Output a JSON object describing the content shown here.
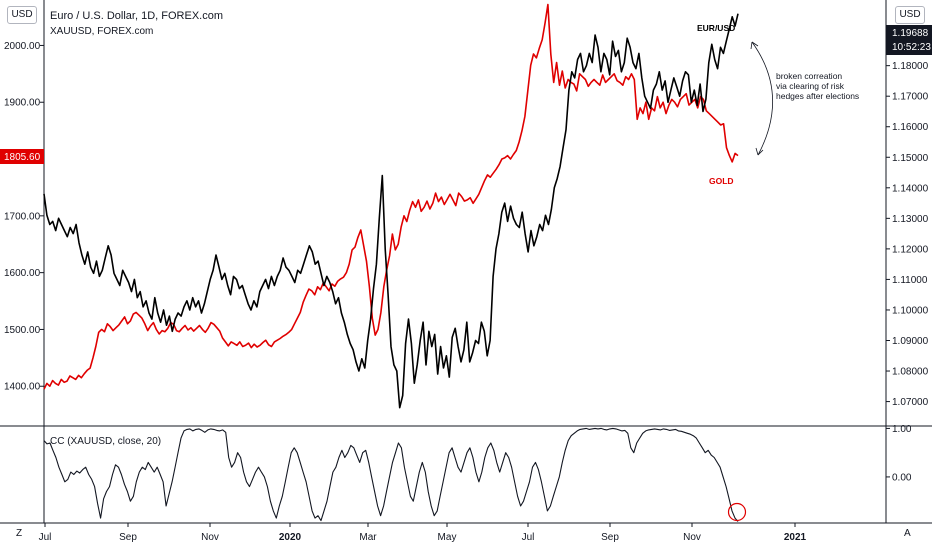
{
  "header": {
    "title": "Euro / U.S. Dollar, 1D, FOREX.com",
    "subtitle": "XAUUSD, FOREX.com",
    "currency_left": "USD",
    "currency_right": "USD"
  },
  "colors": {
    "eurusd": "#000000",
    "gold": "#e00000",
    "price_tag_red": "#e00000",
    "price_tag_dark": "#131722",
    "circle": "#e00000"
  },
  "price_tags": {
    "eurusd_last": "1.19688",
    "countdown": "10:52:23",
    "gold_last": "1805.60"
  },
  "annotations": {
    "eurusd_label": "EUR/USD",
    "gold_label": "GOLD",
    "note_lines": [
      "broken correation",
      "via clearing of risk",
      "hedges after elections"
    ]
  },
  "indicator": {
    "label": "CC (XAUUSD, close, 20)",
    "ticks": [
      "1.00",
      "0.00"
    ]
  },
  "footer": {
    "left_button": "Z",
    "right_button": "A"
  },
  "chart_data": [
    {
      "type": "line",
      "x_ticks": [
        "Jul",
        "Sep",
        "Nov",
        "2020",
        "Mar",
        "May",
        "Jul",
        "Sep",
        "Nov",
        "2021"
      ],
      "y_left_ticks": [
        "2000.00",
        "1900.00",
        "1800.00",
        "1700.00",
        "1600.00",
        "1500.00",
        "1400.00"
      ],
      "y_right_ticks": [
        "1.18000",
        "1.17000",
        "1.16000",
        "1.15000",
        "1.14000",
        "1.13000",
        "1.12000",
        "1.11000",
        "1.10000",
        "1.09000",
        "1.08000",
        "1.07000"
      ],
      "ylim_left": [
        1330,
        2080
      ],
      "ylim_right": [
        1.062,
        1.2015
      ],
      "series": [
        {
          "name": "EUR/USD",
          "axis": "right",
          "values": [
            1.138,
            1.131,
            1.128,
            1.129,
            1.126,
            1.13,
            1.128,
            1.126,
            1.124,
            1.127,
            1.125,
            1.128,
            1.122,
            1.118,
            1.115,
            1.119,
            1.114,
            1.112,
            1.116,
            1.111,
            1.113,
            1.117,
            1.121,
            1.118,
            1.112,
            1.11,
            1.108,
            1.113,
            1.111,
            1.109,
            1.106,
            1.11,
            1.104,
            1.106,
            1.101,
            1.103,
            1.099,
            1.097,
            1.104,
            1.099,
            1.096,
            1.1,
            1.095,
            1.098,
            1.093,
            1.097,
            1.099,
            1.098,
            1.101,
            1.103,
            1.1,
            1.104,
            1.101,
            1.103,
            1.099,
            1.102,
            1.106,
            1.11,
            1.113,
            1.118,
            1.114,
            1.11,
            1.112,
            1.108,
            1.105,
            1.111,
            1.11,
            1.107,
            1.108,
            1.105,
            1.102,
            1.1,
            1.103,
            1.101,
            1.106,
            1.108,
            1.11,
            1.107,
            1.111,
            1.108,
            1.111,
            1.113,
            1.117,
            1.114,
            1.113,
            1.111,
            1.109,
            1.113,
            1.112,
            1.115,
            1.118,
            1.121,
            1.119,
            1.115,
            1.116,
            1.112,
            1.108,
            1.111,
            1.109,
            1.106,
            1.102,
            1.104,
            1.099,
            1.096,
            1.092,
            1.089,
            1.087,
            1.083,
            1.08,
            1.084,
            1.081,
            1.09,
            1.097,
            1.107,
            1.115,
            1.13,
            1.144,
            1.12,
            1.105,
            1.088,
            1.082,
            1.08,
            1.068,
            1.072,
            1.089,
            1.097,
            1.089,
            1.076,
            1.082,
            1.09,
            1.096,
            1.082,
            1.093,
            1.088,
            1.092,
            1.079,
            1.088,
            1.081,
            1.085,
            1.078,
            1.091,
            1.094,
            1.088,
            1.083,
            1.087,
            1.096,
            1.083,
            1.086,
            1.09,
            1.089,
            1.096,
            1.093,
            1.085,
            1.09,
            1.111,
            1.12,
            1.125,
            1.132,
            1.135,
            1.129,
            1.134,
            1.13,
            1.128,
            1.127,
            1.132,
            1.125,
            1.119,
            1.126,
            1.121,
            1.124,
            1.128,
            1.126,
            1.131,
            1.128,
            1.133,
            1.14,
            1.143,
            1.147,
            1.153,
            1.159,
            1.172,
            1.178,
            1.176,
            1.182,
            1.184,
            1.178,
            1.18,
            1.184,
            1.181,
            1.19,
            1.186,
            1.178,
            1.184,
            1.182,
            1.177,
            1.188,
            1.183,
            1.185,
            1.178,
            1.181,
            1.189,
            1.186,
            1.181,
            1.179,
            1.184,
            1.176,
            1.17,
            1.168,
            1.166,
            1.172,
            1.174,
            1.178,
            1.172,
            1.175,
            1.168,
            1.172,
            1.176,
            1.173,
            1.17,
            1.175,
            1.178,
            1.177,
            1.168,
            1.172,
            1.167,
            1.174,
            1.165,
            1.169,
            1.181,
            1.187,
            1.182,
            1.179,
            1.186,
            1.184,
            1.188,
            1.192,
            1.196,
            1.193,
            1.197
          ]
        },
        {
          "name": "GOLD",
          "axis": "left",
          "values": [
            1395,
            1405,
            1400,
            1410,
            1405,
            1402,
            1412,
            1407,
            1409,
            1418,
            1415,
            1412,
            1419,
            1415,
            1422,
            1428,
            1432,
            1450,
            1470,
            1495,
            1500,
            1496,
            1510,
            1505,
            1498,
            1503,
            1508,
            1515,
            1522,
            1510,
            1515,
            1527,
            1530,
            1525,
            1520,
            1510,
            1498,
            1506,
            1512,
            1500,
            1492,
            1498,
            1496,
            1502,
            1512,
            1509,
            1498,
            1496,
            1502,
            1507,
            1499,
            1503,
            1497,
            1502,
            1507,
            1500,
            1495,
            1502,
            1512,
            1509,
            1503,
            1497,
            1485,
            1478,
            1471,
            1478,
            1475,
            1472,
            1478,
            1470,
            1472,
            1476,
            1468,
            1474,
            1469,
            1472,
            1477,
            1481,
            1473,
            1470,
            1478,
            1481,
            1484,
            1488,
            1491,
            1495,
            1500,
            1510,
            1520,
            1530,
            1548,
            1560,
            1571,
            1568,
            1561,
            1575,
            1570,
            1582,
            1575,
            1568,
            1580,
            1576,
            1585,
            1589,
            1592,
            1600,
            1615,
            1640,
            1645,
            1662,
            1675,
            1648,
            1620,
            1575,
            1520,
            1490,
            1500,
            1530,
            1575,
            1605,
            1630,
            1668,
            1640,
            1650,
            1680,
            1700,
            1690,
            1710,
            1725,
            1715,
            1728,
            1708,
            1715,
            1726,
            1712,
            1722,
            1740,
            1725,
            1733,
            1720,
            1729,
            1738,
            1728,
            1718,
            1740,
            1734,
            1726,
            1728,
            1732,
            1722,
            1730,
            1738,
            1750,
            1762,
            1772,
            1768,
            1775,
            1782,
            1790,
            1800,
            1802,
            1806,
            1800,
            1808,
            1815,
            1830,
            1850,
            1875,
            1920,
            1965,
            1985,
            1978,
            1995,
            2010,
            2040,
            2072,
            1985,
            1935,
            1970,
            1930,
            1955,
            1925,
            1940,
            1935,
            1932,
            1920,
            1950,
            1945,
            1940,
            1928,
            1935,
            1940,
            1935,
            1930,
            1948,
            1935,
            1940,
            1945,
            1950,
            1938,
            1935,
            1930,
            1945,
            1940,
            1950,
            1940,
            1870,
            1890,
            1880,
            1900,
            1870,
            1890,
            1885,
            1910,
            1890,
            1900,
            1880,
            1895,
            1905,
            1900,
            1892,
            1905,
            1910,
            1915,
            1895,
            1900,
            1905,
            1890,
            1910,
            1905,
            1885,
            1880,
            1875,
            1870,
            1865,
            1860,
            1862,
            1820,
            1806,
            1795,
            1810,
            1806
          ]
        }
      ]
    },
    {
      "type": "line",
      "title": "CC (XAUUSD, close, 20)",
      "ylim": [
        -0.95,
        1.05
      ],
      "series": [
        {
          "name": "CC (XAUUSD, close, 20)",
          "values": [
            0.75,
            0.68,
            0.7,
            0.55,
            0.4,
            0.2,
            0.05,
            -0.1,
            -0.05,
            0.1,
            0.05,
            0.12,
            0.08,
            0.15,
            0.2,
            0.05,
            -0.05,
            -0.2,
            -0.55,
            -0.85,
            -0.45,
            -0.3,
            -0.2,
            0.05,
            0.25,
            0.2,
            0.05,
            -0.15,
            -0.3,
            -0.5,
            -0.4,
            -0.1,
            0.1,
            0.2,
            0.15,
            0.3,
            0.2,
            0.1,
            0.2,
            0.05,
            -0.1,
            -0.6,
            -0.35,
            -0.1,
            0.2,
            0.5,
            0.8,
            0.95,
            0.98,
            0.99,
            0.95,
            0.98,
            0.99,
            0.96,
            0.92,
            0.97,
            0.99,
            0.98,
            0.96,
            0.95,
            0.97,
            0.92,
            0.4,
            0.2,
            0.3,
            0.5,
            0.4,
            0.1,
            -0.1,
            -0.2,
            -0.05,
            0.1,
            0.2,
            0.1,
            0.0,
            -0.2,
            -0.5,
            -0.7,
            -0.85,
            -0.6,
            -0.4,
            -0.1,
            0.2,
            0.5,
            0.6,
            0.5,
            0.3,
            0.1,
            -0.1,
            -0.4,
            -0.7,
            -0.85,
            -0.8,
            -0.9,
            -0.7,
            -0.5,
            -0.2,
            0.1,
            0.2,
            0.4,
            0.55,
            0.4,
            0.5,
            0.65,
            0.6,
            0.45,
            0.3,
            0.5,
            0.55,
            0.3,
            0.0,
            -0.3,
            -0.6,
            -0.8,
            -0.6,
            -0.3,
            0.0,
            0.3,
            0.5,
            0.7,
            0.6,
            0.2,
            -0.1,
            -0.4,
            -0.5,
            -0.2,
            0.1,
            0.3,
            0.1,
            -0.3,
            -0.6,
            -0.8,
            -0.7,
            -0.4,
            -0.1,
            0.2,
            0.5,
            0.6,
            0.4,
            0.2,
            0.1,
            0.3,
            0.5,
            0.6,
            0.4,
            0.1,
            -0.1,
            0.1,
            0.4,
            0.6,
            0.7,
            0.55,
            0.3,
            0.1,
            0.3,
            0.5,
            0.4,
            0.2,
            -0.1,
            -0.4,
            -0.6,
            -0.5,
            -0.3,
            -0.1,
            0.2,
            0.3,
            0.15,
            -0.1,
            -0.4,
            -0.7,
            -0.6,
            -0.4,
            -0.2,
            0.0,
            0.3,
            0.55,
            0.75,
            0.85,
            0.9,
            0.95,
            0.98,
            0.99,
            1.0,
            0.98,
            0.99,
            1.0,
            0.99,
            1.0,
            0.98,
            0.97,
            0.99,
            1.0,
            0.99,
            0.97,
            0.95,
            0.96,
            0.9,
            0.6,
            0.5,
            0.7,
            0.8,
            0.9,
            0.95,
            0.97,
            0.98,
            0.99,
            0.98,
            0.97,
            0.99,
            0.98,
            0.96,
            0.97,
            0.98,
            0.95,
            0.94,
            0.92,
            0.9,
            0.88,
            0.85,
            0.8,
            0.7,
            0.6,
            0.5,
            0.55,
            0.45,
            0.4,
            0.3,
            0.2,
            0.0,
            -0.2,
            -0.45,
            -0.7,
            -0.85,
            -0.92
          ]
        }
      ]
    }
  ]
}
